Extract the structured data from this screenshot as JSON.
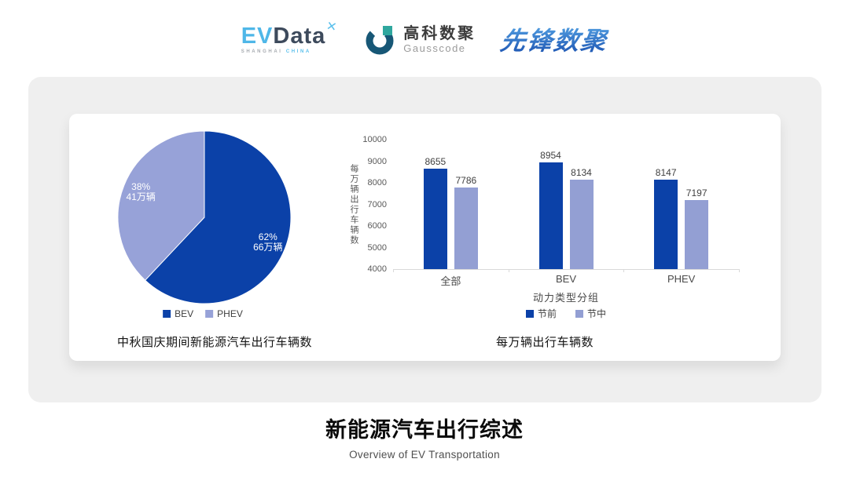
{
  "header": {
    "evdata": {
      "ev": "EV",
      "data": "Data",
      "mark": "✕",
      "sub_left": "SHANGHAI",
      "sub_right": "CHINA"
    },
    "gausscode": {
      "cn": "高科数聚",
      "en": "Gausscode"
    },
    "pioneer": "先锋数聚"
  },
  "colors": {
    "series_dark": "#0B41A8",
    "series_light": "#939FD3",
    "panel_bg": "#EFEFEF",
    "axis_line": "#D9D9D9"
  },
  "chart_data": [
    {
      "type": "pie",
      "title": "中秋国庆期间新能源汽车出行车辆数",
      "legend_position": "bottom",
      "slices": [
        {
          "label": "BEV",
          "percent": 62,
          "percent_label": "62%",
          "value_label": "66万辆",
          "color": "#0B41A8"
        },
        {
          "label": "PHEV",
          "percent": 38,
          "percent_label": "38%",
          "value_label": "41万辆",
          "color": "#97A2D8"
        }
      ]
    },
    {
      "type": "bar",
      "title": "每万辆出行车辆数",
      "categories": [
        "全部",
        "BEV",
        "PHEV"
      ],
      "series": [
        {
          "name": "节前",
          "color": "#0B41A8",
          "values": [
            8655,
            8954,
            8147
          ]
        },
        {
          "name": "节中",
          "color": "#939FD3",
          "values": [
            7786,
            8134,
            7197
          ]
        }
      ],
      "xlabel": "动力类型分组",
      "ylabel": "每万辆出行车辆数",
      "ylim": [
        4000,
        10000
      ],
      "yticks": [
        4000,
        5000,
        6000,
        7000,
        8000,
        9000,
        10000
      ],
      "legend_position": "bottom",
      "grid": false
    }
  ],
  "footer": {
    "title": "新能源汽车出行综述",
    "subtitle": "Overview of EV Transportation"
  }
}
